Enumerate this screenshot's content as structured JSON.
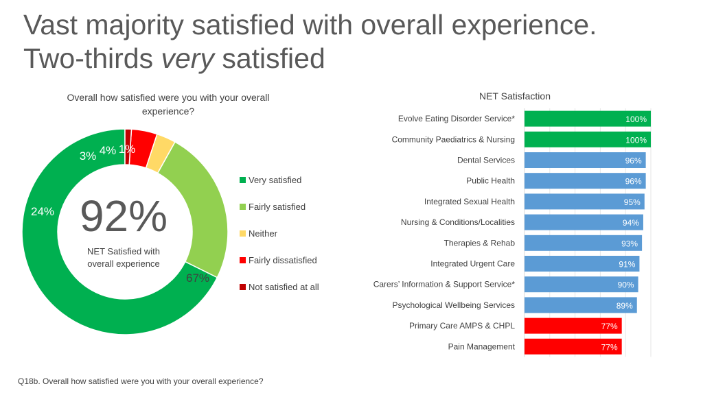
{
  "title": {
    "line1": "Vast majority satisfied with overall experience.",
    "line2_before": "Two-thirds ",
    "line2_emphasis": "very",
    "line2_after": " satisfied"
  },
  "footnote": "Q18b. Overall how satisfied were you with your overall experience?",
  "chart_data": [
    {
      "type": "pie",
      "title": "Overall how satisfied were you with your overall experience?",
      "center_value": "92%",
      "center_caption_line1": "NET Satisfied with",
      "center_caption_line2": "overall experience",
      "slices": [
        {
          "name": "Very satisfied",
          "value": 67,
          "label": "67%",
          "color": "#00b050"
        },
        {
          "name": "Fairly satisfied",
          "value": 24,
          "label": "24%",
          "color": "#92d050"
        },
        {
          "name": "Neither",
          "value": 3,
          "label": "3%",
          "color": "#ffd966"
        },
        {
          "name": "Fairly dissatisfied",
          "value": 4,
          "label": "4%",
          "color": "#ff0000"
        },
        {
          "name": "Not satisfied at all",
          "value": 1,
          "label": "1%",
          "color": "#c00000"
        }
      ],
      "legend_position": "right"
    },
    {
      "type": "bar",
      "orientation": "horizontal",
      "title": "NET Satisfaction",
      "xlim": [
        0,
        100
      ],
      "grid": true,
      "categories": [
        "Evolve Eating Disorder Service*",
        "Community Paediatrics & Nursing",
        "Dental Services",
        "Public Health",
        "Integrated Sexual Health",
        "Nursing & Conditions/Localities",
        "Therapies & Rehab",
        "Integrated Urgent Care",
        "Carers’ Information & Support Service*",
        "Psychological Wellbeing Services",
        "Primary Care AMPS & CHPL",
        "Pain Management"
      ],
      "values": [
        100,
        100,
        96,
        96,
        95,
        94,
        93,
        91,
        90,
        89,
        77,
        77
      ],
      "labels": [
        "100%",
        "100%",
        "96%",
        "96%",
        "95%",
        "94%",
        "93%",
        "91%",
        "90%",
        "89%",
        "77%",
        "77%"
      ],
      "colors": [
        "#00b050",
        "#00b050",
        "#5b9bd5",
        "#5b9bd5",
        "#5b9bd5",
        "#5b9bd5",
        "#5b9bd5",
        "#5b9bd5",
        "#5b9bd5",
        "#5b9bd5",
        "#ff0000",
        "#ff0000"
      ]
    }
  ]
}
